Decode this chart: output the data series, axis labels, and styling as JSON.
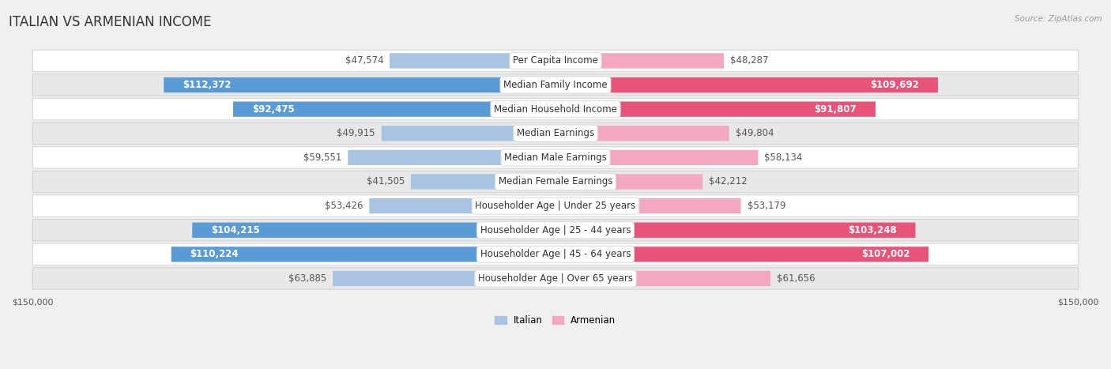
{
  "title": "ITALIAN VS ARMENIAN INCOME",
  "source": "Source: ZipAtlas.com",
  "categories": [
    "Per Capita Income",
    "Median Family Income",
    "Median Household Income",
    "Median Earnings",
    "Median Male Earnings",
    "Median Female Earnings",
    "Householder Age | Under 25 years",
    "Householder Age | 25 - 44 years",
    "Householder Age | 45 - 64 years",
    "Householder Age | Over 65 years"
  ],
  "italian_values": [
    47574,
    112372,
    92475,
    49915,
    59551,
    41505,
    53426,
    104215,
    110224,
    63885
  ],
  "armenian_values": [
    48287,
    109692,
    91807,
    49804,
    58134,
    42212,
    53179,
    103248,
    107002,
    61656
  ],
  "italian_labels": [
    "$47,574",
    "$112,372",
    "$92,475",
    "$49,915",
    "$59,551",
    "$41,505",
    "$53,426",
    "$104,215",
    "$110,224",
    "$63,885"
  ],
  "armenian_labels": [
    "$48,287",
    "$109,692",
    "$91,807",
    "$49,804",
    "$58,134",
    "$42,212",
    "$53,179",
    "$103,248",
    "$107,002",
    "$61,656"
  ],
  "italian_color_light": "#a8c4e0",
  "italian_color_dark": "#5b9bd5",
  "armenian_color_light": "#f4a7c0",
  "armenian_color_dark": "#e8537a",
  "max_value": 150000,
  "background_color": "#f0f0f0",
  "row_colors": [
    "#ffffff",
    "#e8e8e8"
  ],
  "title_fontsize": 12,
  "label_fontsize": 8.5,
  "cat_fontsize": 8.5,
  "bar_height": 0.62,
  "axis_label_fontsize": 8,
  "large_threshold": 85000
}
